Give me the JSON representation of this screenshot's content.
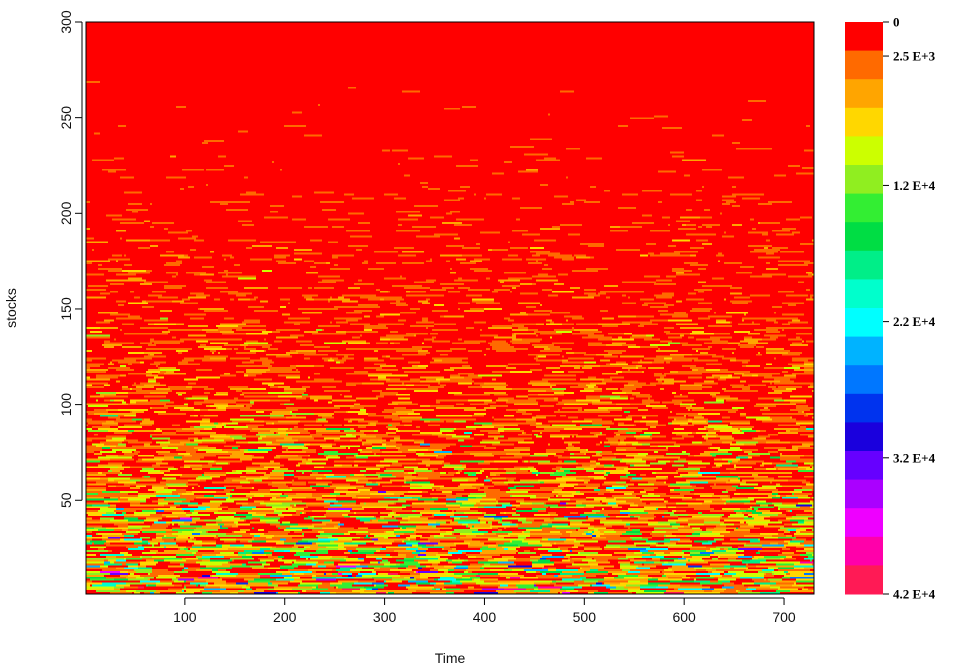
{
  "chart_data": {
    "type": "heatmap",
    "title": "",
    "xlabel": "Time",
    "ylabel": "stocks",
    "xlim": [
      1,
      730
    ],
    "ylim": [
      1,
      300
    ],
    "x_ticks": [
      100,
      200,
      300,
      400,
      500,
      600,
      700
    ],
    "y_ticks": [
      50,
      100,
      150,
      200,
      250,
      300
    ],
    "grid": false,
    "legend_placement": "right",
    "colorscale": {
      "min": 0,
      "max": 42000,
      "colors": [
        "#ff0000",
        "#ff6a00",
        "#ffa500",
        "#ffd700",
        "#ccff00",
        "#90ee20",
        "#33ee33",
        "#00dd44",
        "#00ee88",
        "#00ffcc",
        "#00ffff",
        "#00b3ff",
        "#0077ff",
        "#0033ee",
        "#1a00dd",
        "#6600ff",
        "#aa00ff",
        "#ee00ff",
        "#ff00aa",
        "#ff1a55"
      ],
      "labels": [
        {
          "text": "0",
          "value": 0
        },
        {
          "text": "2.5 E+3",
          "value": 2500
        },
        {
          "text": "1.2 E+4",
          "value": 12000
        },
        {
          "text": "2.2 E+4",
          "value": 22000
        },
        {
          "text": "3.2 E+4",
          "value": 32000
        },
        {
          "text": "4.2 E+4",
          "value": 42000
        }
      ]
    },
    "value_profile_by_stock": {
      "description_rows": [
        1,
        50,
        100,
        150,
        200,
        250,
        300
      ],
      "typical_value": [
        9000,
        5000,
        2500,
        1500,
        900,
        500,
        200
      ]
    }
  }
}
